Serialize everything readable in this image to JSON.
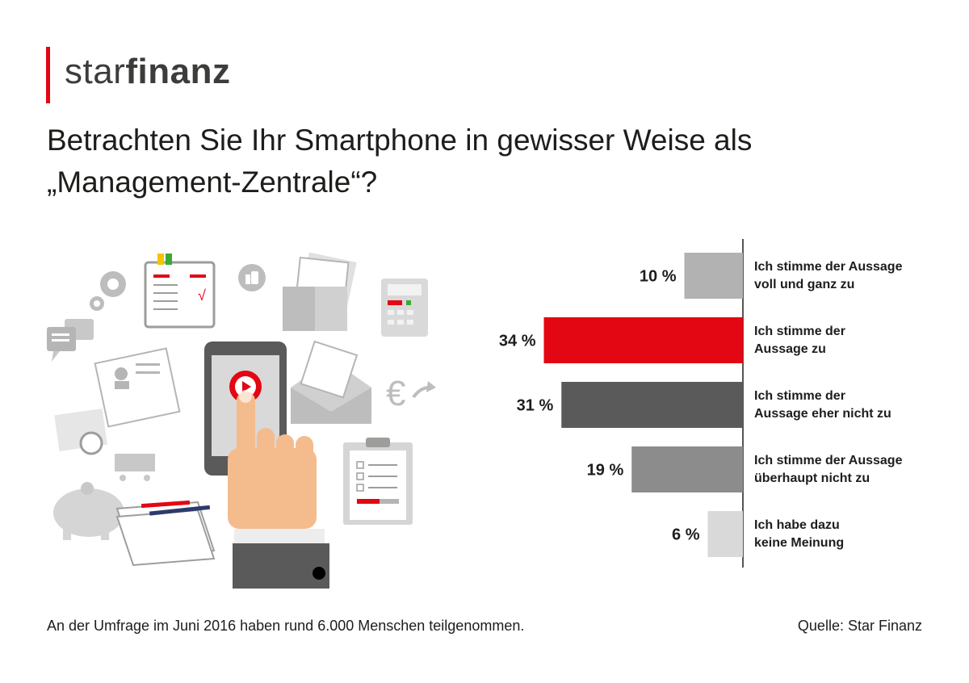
{
  "brand": {
    "light": "star",
    "bold": "finanz",
    "accent_color": "#e30613"
  },
  "title": {
    "line1": "Betrachten Sie Ihr Smartphone in gewisser Weise als",
    "line2": "„Management-Zentrale“?"
  },
  "chart_data": {
    "type": "bar",
    "orientation": "horizontal",
    "title": "Betrachten Sie Ihr Smartphone in gewisser Weise als „Management-Zentrale“?",
    "categories": [
      [
        "Ich stimme der Aussage",
        "voll und ganz zu"
      ],
      [
        "Ich stimme der",
        "Aussage zu"
      ],
      [
        "Ich stimme der",
        "Aussage eher nicht zu"
      ],
      [
        "Ich stimme der Aussage",
        "überhaupt nicht zu"
      ],
      [
        "Ich habe dazu",
        "keine Meinung"
      ]
    ],
    "values": [
      10,
      34,
      31,
      19,
      6
    ],
    "value_labels": [
      "10 %",
      "34 %",
      "31 %",
      "19 %",
      "6 %"
    ],
    "colors": [
      "#b2b2b2",
      "#e30613",
      "#5a5a5a",
      "#8c8c8c",
      "#d9d9d9"
    ],
    "unit": "%",
    "xlim": [
      0,
      100
    ]
  },
  "footnote": "An der Umfrage im Juni 2016 haben rund 6.000 Menschen teilgenommen.",
  "source": "Quelle: Star Finanz"
}
